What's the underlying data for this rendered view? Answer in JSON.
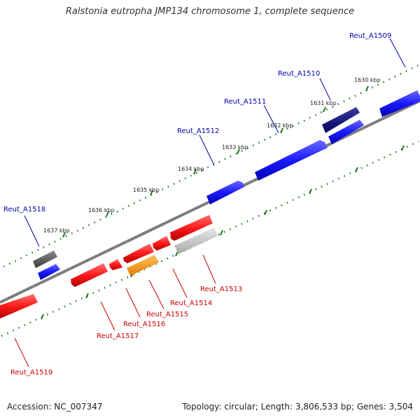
{
  "title": "Ralstonia eutropha JMP134 chromosome 1, complete sequence",
  "footer": {
    "accession": "Accession: NC_007347",
    "summary": "Topology: circular; Length: 3,806,533 bp; Genes: 3,504"
  },
  "colors": {
    "forward_gene": "#1a1aff",
    "reverse_gene": "#ff1a1a",
    "dark_gene": "#00006e",
    "gray_gene": "#5a5a5a",
    "light_gray_gene": "#c8c8c8",
    "orange_gene": "#ffa010",
    "ticks": "#1f7a1f",
    "backbone": "#7d7d7d",
    "forward_label": "#0000aa",
    "reverse_label": "#cc0000"
  },
  "scale_ticks": [
    "1630 kbp",
    "1631 kbp",
    "1632 kbp",
    "1633 kbp",
    "1634 kbp",
    "1635 kbp",
    "1636 kbp",
    "1637 kbp"
  ],
  "forward_labels": [
    "Reut_A1509",
    "Reut_A1510",
    "Reut_A1511",
    "Reut_A1512",
    "Reut_A1518"
  ],
  "reverse_labels": [
    "Reut_A1513",
    "Reut_A1514",
    "Reut_A1515",
    "Reut_A1516",
    "Reut_A1517",
    "Reut_A1519"
  ]
}
